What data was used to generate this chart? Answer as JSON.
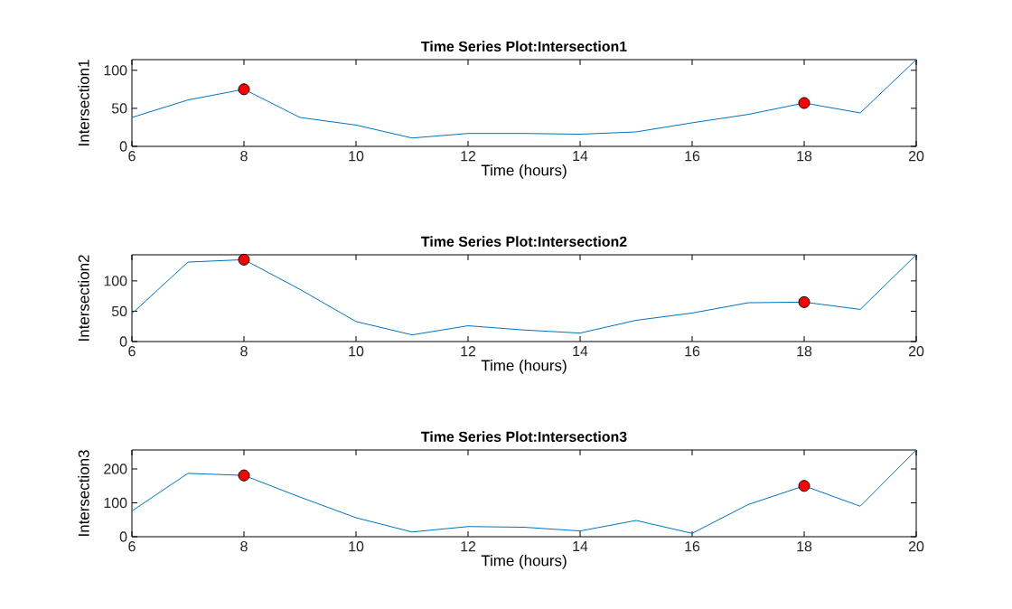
{
  "chart_data": [
    {
      "type": "line",
      "title": "Time Series Plot:Intersection1",
      "xlabel": "Time (hours)",
      "ylabel": "Intersection1",
      "xlim": [
        6,
        20
      ],
      "xticks": [
        6,
        8,
        10,
        12,
        14,
        16,
        18,
        20
      ],
      "ylim": [
        0,
        114
      ],
      "yticks": [
        0,
        50,
        100
      ],
      "series": [
        {
          "color": "#0072bd",
          "x": [
            6,
            7,
            8,
            9,
            10,
            11,
            12,
            13,
            14,
            15,
            16,
            17,
            18,
            19,
            20
          ],
          "values": [
            38,
            61,
            75,
            38,
            28,
            11,
            17,
            17,
            16,
            19,
            31,
            42,
            57,
            44,
            114
          ]
        },
        {
          "type": "scatter",
          "color": "#ff0000",
          "marker": "circle",
          "x": [
            8,
            18
          ],
          "values": [
            75,
            57
          ]
        }
      ]
    },
    {
      "type": "line",
      "title": "Time Series Plot:Intersection2",
      "xlabel": "Time (hours)",
      "ylabel": "Intersection2",
      "xlim": [
        6,
        20
      ],
      "xticks": [
        6,
        8,
        10,
        12,
        14,
        16,
        18,
        20
      ],
      "ylim": [
        0,
        143
      ],
      "yticks": [
        0,
        50,
        100
      ],
      "series": [
        {
          "color": "#0072bd",
          "x": [
            6,
            7,
            8,
            9,
            10,
            11,
            12,
            13,
            14,
            15,
            16,
            17,
            18,
            19,
            20
          ],
          "values": [
            46,
            131,
            135,
            86,
            33,
            11,
            26,
            19,
            14,
            35,
            47,
            64,
            65,
            53,
            143
          ]
        },
        {
          "type": "scatter",
          "color": "#ff0000",
          "marker": "circle",
          "x": [
            8,
            18
          ],
          "values": [
            135,
            65
          ]
        }
      ]
    },
    {
      "type": "line",
      "title": "Time Series Plot:Intersection3",
      "xlabel": "Time (hours)",
      "ylabel": "Intersection3",
      "xlim": [
        6,
        20
      ],
      "xticks": [
        6,
        8,
        10,
        12,
        14,
        16,
        18,
        20
      ],
      "ylim": [
        0,
        256
      ],
      "yticks": [
        0,
        100,
        200
      ],
      "series": [
        {
          "color": "#0072bd",
          "x": [
            6,
            7,
            8,
            9,
            10,
            11,
            12,
            13,
            14,
            15,
            16,
            17,
            18,
            19,
            20
          ],
          "values": [
            76,
            187,
            181,
            117,
            56,
            14,
            30,
            28,
            17,
            48,
            10,
            95,
            150,
            90,
            256
          ]
        },
        {
          "type": "scatter",
          "color": "#ff0000",
          "marker": "circle",
          "x": [
            8,
            18
          ],
          "values": [
            181,
            150
          ]
        }
      ]
    }
  ]
}
